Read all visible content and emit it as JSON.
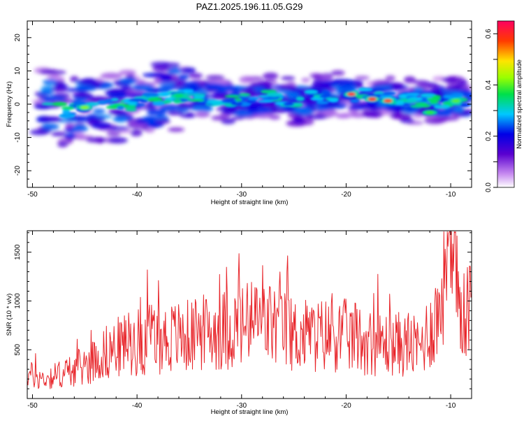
{
  "title": "PAZ1.2025.196.11.05.G29",
  "chart_data": [
    {
      "type": "heatmap",
      "xlabel": "Height of straight line (km)",
      "ylabel": "Frequency (Hz)",
      "xlim": [
        -50.5,
        -8
      ],
      "ylim": [
        -25,
        25
      ],
      "xticks": [
        "-50",
        "-40",
        "-30",
        "-20",
        "-10"
      ],
      "yticks": [
        "-20",
        "-10",
        "0",
        "10",
        "20"
      ],
      "colorbar": {
        "label": "Normalized spectral amplitude",
        "range": [
          0,
          0.65
        ],
        "ticks": [
          "0.0",
          "0.2",
          "0.4",
          "0.6"
        ]
      },
      "ridge": [
        {
          "x": -49,
          "f": 0
        },
        {
          "x": -47,
          "f": -2
        },
        {
          "x": -45,
          "f": -1
        },
        {
          "x": -43,
          "f": 0
        },
        {
          "x": -41,
          "f": -1
        },
        {
          "x": -39,
          "f": 1
        },
        {
          "x": -37,
          "f": 2
        },
        {
          "x": -35,
          "f": 3
        },
        {
          "x": -33,
          "f": 2
        },
        {
          "x": -31,
          "f": 1
        },
        {
          "x": -29,
          "f": 1
        },
        {
          "x": -27,
          "f": 2
        },
        {
          "x": -25,
          "f": 1
        },
        {
          "x": -23,
          "f": 2
        },
        {
          "x": -21,
          "f": 3
        },
        {
          "x": -19,
          "f": 3
        },
        {
          "x": -17,
          "f": 2
        },
        {
          "x": -15,
          "f": 2
        },
        {
          "x": -13,
          "f": 1
        },
        {
          "x": -11,
          "f": 1
        },
        {
          "x": -9,
          "f": 1
        }
      ],
      "peaks": [
        {
          "x": -19.5,
          "f": 3,
          "value": 0.62
        },
        {
          "x": -17.5,
          "f": 1.5,
          "value": 0.6
        },
        {
          "x": -16,
          "f": 1,
          "value": 0.58
        },
        {
          "x": -45,
          "f": -1,
          "value": 0.42
        },
        {
          "x": -36,
          "f": 2.5,
          "value": 0.35
        },
        {
          "x": -9.5,
          "f": 1,
          "value": 0.4
        },
        {
          "x": -12,
          "f": -2.5,
          "value": 0.38
        }
      ]
    },
    {
      "type": "line",
      "xlabel": "Height of straight line (km)",
      "ylabel": "SNR (10 * v/v)",
      "xlim": [
        -50.5,
        -8
      ],
      "ylim": [
        0,
        1720
      ],
      "xticks": [
        "-50",
        "-40",
        "-30",
        "-20",
        "-10"
      ],
      "yticks": [
        "500",
        "1000",
        "1500"
      ],
      "color": "#e8262b",
      "x": [
        -50.5,
        -49,
        -47,
        -45,
        -43,
        -41,
        -39,
        -37,
        -35,
        -33,
        -31,
        -29,
        -27,
        -25,
        -23,
        -21,
        -19,
        -17,
        -15,
        -13,
        -11,
        -10.5,
        -10,
        -9,
        -8
      ],
      "values": [
        250,
        200,
        260,
        340,
        470,
        560,
        600,
        620,
        640,
        680,
        720,
        760,
        760,
        650,
        640,
        660,
        620,
        560,
        560,
        520,
        900,
        1650,
        1250,
        950,
        950
      ]
    }
  ]
}
